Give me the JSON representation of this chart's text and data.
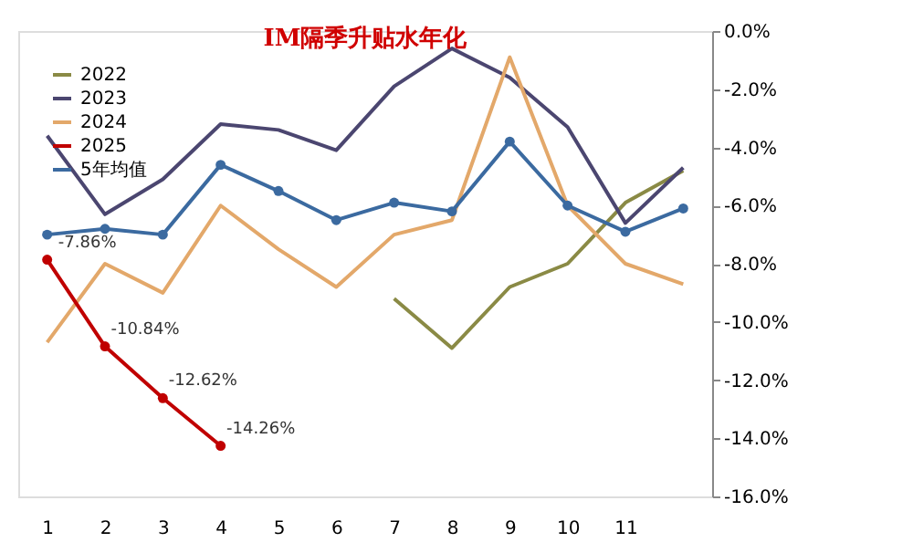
{
  "chart_data": {
    "type": "line",
    "title": "IM隔季升贴水年化",
    "categories": [
      "1",
      "2",
      "3",
      "4",
      "5",
      "6",
      "7",
      "8",
      "9",
      "10",
      "11",
      null
    ],
    "series": [
      {
        "name": "2022",
        "color": "#8a8a45",
        "marker": "none",
        "values": [
          null,
          null,
          null,
          null,
          null,
          null,
          -9.2,
          -10.9,
          -8.8,
          -8.0,
          -5.9,
          -4.8
        ]
      },
      {
        "name": "2023",
        "color": "#4b4670",
        "marker": "none",
        "values": [
          -3.6,
          -6.3,
          -5.1,
          -3.2,
          -3.4,
          -4.1,
          -1.9,
          -0.6,
          -1.6,
          -3.3,
          -6.6,
          -4.7
        ]
      },
      {
        "name": "2024",
        "color": "#e3a86a",
        "marker": "none",
        "values": [
          -10.7,
          -8.0,
          -9.0,
          -6.0,
          -7.5,
          -8.8,
          -7.0,
          -6.5,
          -0.9,
          -6.0,
          -8.0,
          -8.7
        ]
      },
      {
        "name": "2025",
        "color": "#c00000",
        "marker": "circle",
        "values": [
          -7.86,
          -10.84,
          -12.62,
          -14.26,
          null,
          null,
          null,
          null,
          null,
          null,
          null,
          null
        ],
        "value_labels": [
          "-7.86%",
          "-10.84%",
          "-12.62%",
          "-14.26%",
          null,
          null,
          null,
          null,
          null,
          null,
          null,
          null
        ]
      },
      {
        "name": "5年均值",
        "color": "#3b6aa0",
        "marker": "circle",
        "values": [
          -7.0,
          -6.8,
          -7.0,
          -4.6,
          -5.5,
          -6.5,
          -5.9,
          -6.2,
          -3.8,
          -6.0,
          -6.9,
          -6.1
        ]
      }
    ],
    "ylim": [
      -16,
      0
    ],
    "yticks": [
      {
        "value": 0,
        "label": "0.0%"
      },
      {
        "value": -2,
        "label": "-2.0%"
      },
      {
        "value": -4,
        "label": "-4.0%"
      },
      {
        "value": -6,
        "label": "-6.0%"
      },
      {
        "value": -8,
        "label": "-8.0%"
      },
      {
        "value": -10,
        "label": "-10.0%"
      },
      {
        "value": -12,
        "label": "-12.0%"
      },
      {
        "value": -14,
        "label": "-14.0%"
      },
      {
        "value": -16,
        "label": "-16.0%"
      }
    ],
    "grid": false,
    "legend": "top left"
  }
}
